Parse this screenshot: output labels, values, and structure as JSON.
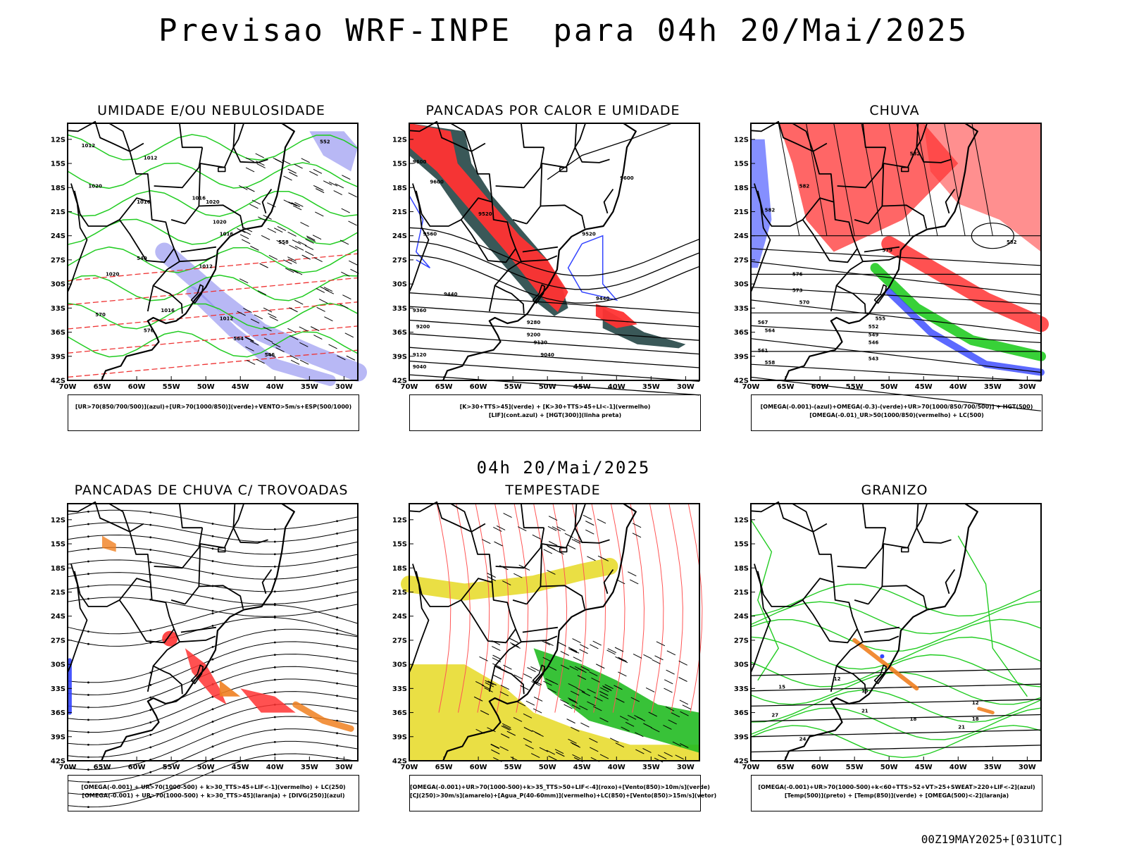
{
  "main_title": "Previsao WRF-INPE  para 04h 20/Mai/2025",
  "mid_time": "04h 20/Mai/2025",
  "footer": "00Z19MAY2025+[031UTC]",
  "axis": {
    "lat_ticks": [
      "12S",
      "15S",
      "18S",
      "21S",
      "24S",
      "27S",
      "30S",
      "33S",
      "36S",
      "39S",
      "42S"
    ],
    "lon_ticks": [
      "70W",
      "65W",
      "60W",
      "55W",
      "50W",
      "45W",
      "40W",
      "35W",
      "30W"
    ]
  },
  "colors": {
    "red": "#ff3333",
    "green": "#22cc22",
    "blue": "#3344ff",
    "lavender": "#8888ee",
    "darkteal": "#2f4f4f",
    "yellow": "#e8dc30",
    "orange": "#f08020",
    "black": "#000000"
  },
  "panels": [
    {
      "id": "umidade",
      "title": "UMIDADE E/OU NEBULOSIDADE",
      "legend": [
        "[UR>70(850/700/500)](azul)+[UR>70(1000/850)](verde)+VENTO>5m/s+ESP(500/1000)"
      ],
      "contour_labels": [
        "1012",
        "1012",
        "1016",
        "1016",
        "1020",
        "1020",
        "1020",
        "1016",
        "1012",
        "1020",
        "1016",
        "1012",
        "564",
        "558",
        "552",
        "546",
        "540",
        "570",
        "576"
      ]
    },
    {
      "id": "pancadas-calor",
      "title": "PANCADAS POR CALOR E UMIDADE",
      "legend": [
        "[K>30+TTS>45](verde) + [K>30+TTS>45+LI<-1](vermelho)",
        "[LIF](cont.azul) + [HGT(300)](linha preta)"
      ],
      "contour_labels": [
        "9600",
        "9600",
        "9560",
        "9520",
        "9440",
        "9360",
        "9280",
        "9200",
        "9120",
        "9040",
        "9520",
        "9440",
        "9200",
        "9120",
        "9040",
        "9600"
      ]
    },
    {
      "id": "chuva",
      "title": "CHUVA",
      "legend": [
        "[OMEGA(-0.001)-(azul)+OMEGA(-0.3)-(verde)+UR>70(1000/850/700/500)] + HGT(500)",
        "[OMEGA(-0.01)_UR>50(1000/850)(vermelho) + LC(500)"
      ],
      "contour_labels": [
        "582",
        "582",
        "582",
        "579",
        "576",
        "573",
        "570",
        "567",
        "564",
        "561",
        "558",
        "555",
        "552",
        "549",
        "546",
        "543",
        "582"
      ]
    },
    {
      "id": "pancadas-trovoadas",
      "title": "PANCADAS DE CHUVA C/ TROVOADAS",
      "legend": [
        "[OMEGA(-0.001) + UR>70(1000-500) + k>30_TTS>45+LIF<-1](vermelho) + LC(250)",
        "[OMEGA(-0.001) + UR>70(1000-500) + k>30_TTS>45](laranja) + [DIVG(250)](azul)"
      ],
      "contour_labels": []
    },
    {
      "id": "tempestade",
      "title": "TEMPESTADE",
      "legend": [
        "[OMEGA(-0.001)+UR>70(1000-500)+k>35_TTS>50+LIF<-4](roxo)+[Vento(850)>10m/s](verde)",
        "[CJ(250)>30m/s](amarelo)+[Agua_P(40-60mm)](vermelho)+LC(850)+[Vento(850)>15m/s](vetor)"
      ],
      "contour_labels": []
    },
    {
      "id": "granizo",
      "title": "GRANIZO",
      "legend": [
        "[OMEGA(-0.001)+UR>70(1000-500)+k<60+TTS>52+VT>25+SWEAT>220+LIF<-2](azul)",
        "[Temp(500)](preto) + [Temp(850)](verde) + [OMEGA(500)<-2](laranja)"
      ],
      "contour_labels": [
        "12",
        "15",
        "18",
        "21",
        "24",
        "27",
        "15",
        "12",
        "18",
        "21"
      ]
    }
  ]
}
